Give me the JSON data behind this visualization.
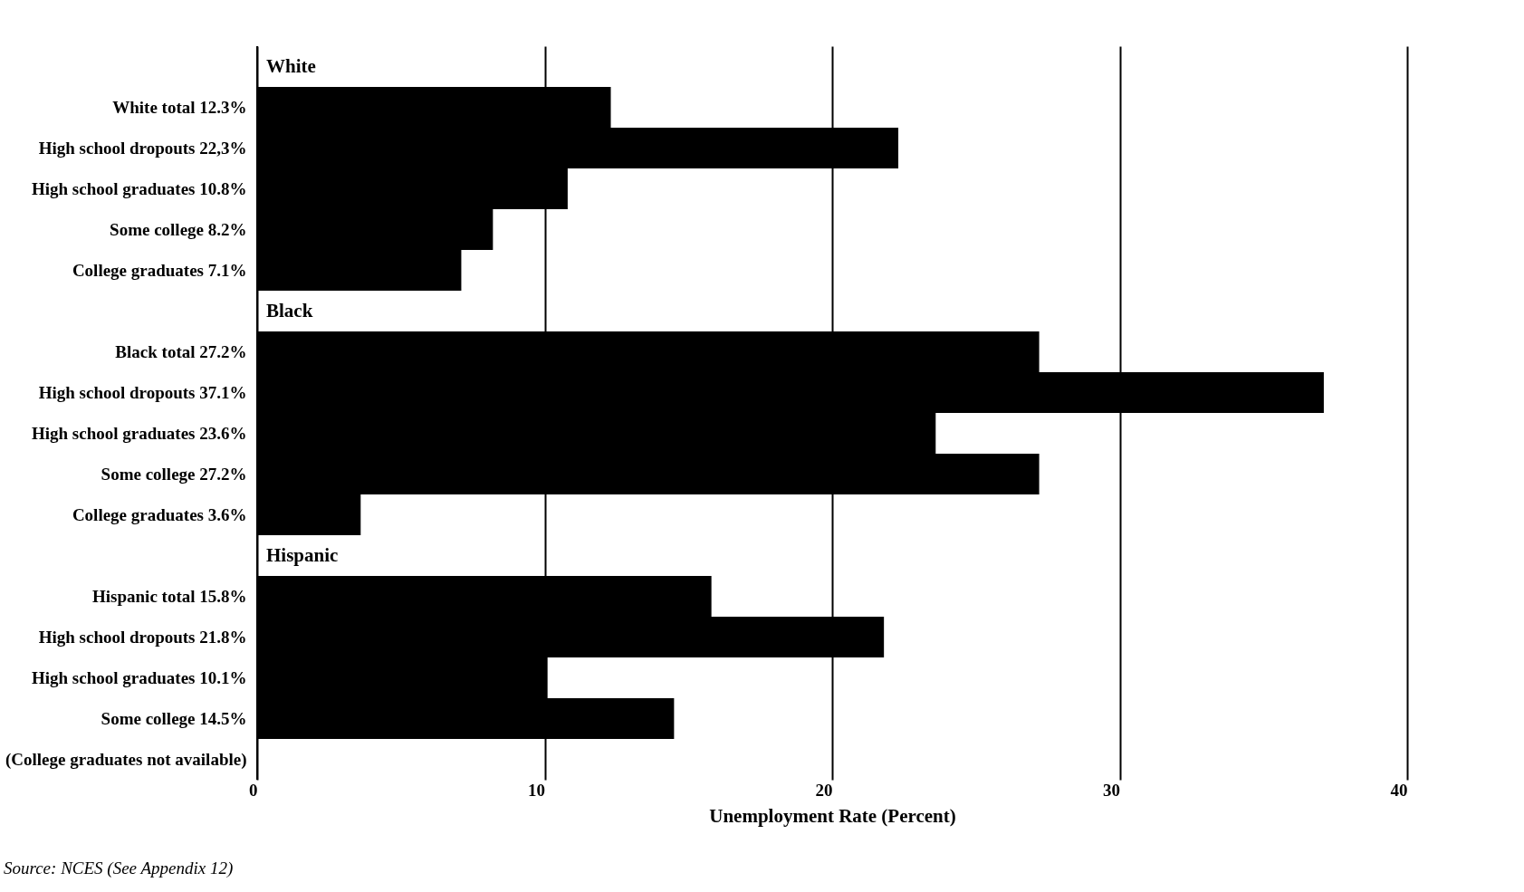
{
  "chart_data": {
    "type": "bar",
    "orientation": "horizontal",
    "xlabel": "Unemployment Rate (Percent)",
    "categories": [
      null,
      "White total 12.3%",
      "High school dropouts 22,3%",
      "High school graduates 10.8%",
      "Some college 8.2%",
      "College graduates 7.1%",
      null,
      "Black total 27.2%",
      "High school dropouts 37.1%",
      "High school graduates 23.6%",
      "Some college 27.2%",
      "College graduates 3.6%",
      null,
      "Hispanic total 15.8%",
      "High school dropouts 21.8%",
      "High school graduates 10.1%",
      "Some college 14.5%",
      "(College graduates not available)"
    ],
    "values": [
      null,
      12.3,
      22.3,
      10.8,
      8.2,
      7.1,
      null,
      27.2,
      37.1,
      23.6,
      27.2,
      3.6,
      null,
      15.8,
      21.8,
      10.1,
      14.5,
      null
    ],
    "color": "#000000",
    "xlim": [
      0,
      40
    ],
    "xticks": [
      0,
      10,
      20,
      30,
      40
    ],
    "grid": "x",
    "annotations": [
      {
        "text": "White",
        "y": "White total 12.3%"
      },
      {
        "text": "Black",
        "y": "Black total 27.2%"
      },
      {
        "text": "Hispanic",
        "y": "Hispanic total 15.8%"
      },
      "Source: NCES (See Appendix 12)"
    ]
  }
}
